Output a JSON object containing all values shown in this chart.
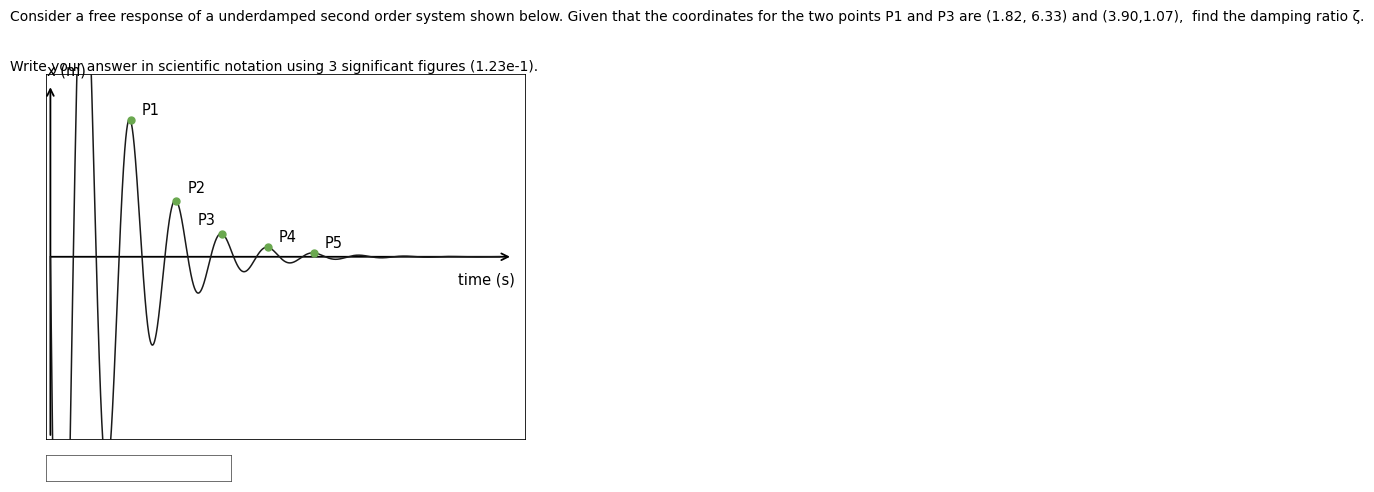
{
  "line1": "Consider a free response of a underdamped second order system shown below. Given that the coordinates for the two points P1 and P3 are (1.82, 6.33) and (3.90,1.07),  find the damping ratio ζ.",
  "line2": "Write your answer in scientific notation using 3 significant figures (1.23e-1).",
  "xlabel": "time (s)",
  "ylabel": "x (m)",
  "P1": [
    1.82,
    6.33
  ],
  "P3": [
    3.9,
    1.07
  ],
  "background_color": "#ffffff",
  "line_color": "#1a1a1a",
  "point_color": "#6aa84f",
  "text_fontsize": 10.0,
  "label_fontsize": 10.5
}
